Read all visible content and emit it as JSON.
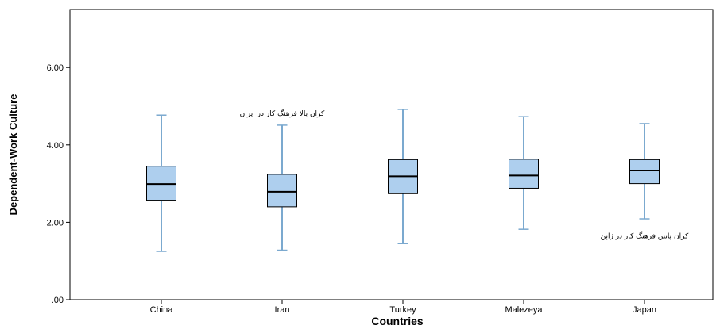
{
  "chart_data": {
    "type": "boxplot",
    "xlabel": "Countries",
    "ylabel": "Dependent-Work Culture",
    "ylim": [
      0,
      7.5
    ],
    "yticks": [
      {
        "value": 0,
        "label": ".00"
      },
      {
        "value": 2,
        "label": "2.00"
      },
      {
        "value": 4,
        "label": "4.00"
      },
      {
        "value": 6,
        "label": "6.00"
      }
    ],
    "grid": false,
    "categories": [
      "China",
      "Iran",
      "Turkey",
      "Malezeya",
      "Japan"
    ],
    "boxes": [
      {
        "category": "China",
        "min": 1.25,
        "q1": 2.57,
        "median": 2.99,
        "q3": 3.45,
        "max": 4.77
      },
      {
        "category": "Iran",
        "min": 1.28,
        "q1": 2.4,
        "median": 2.79,
        "q3": 3.24,
        "max": 4.51
      },
      {
        "category": "Turkey",
        "min": 1.45,
        "q1": 2.74,
        "median": 3.19,
        "q3": 3.62,
        "max": 4.92
      },
      {
        "category": "Malezeya",
        "min": 1.82,
        "q1": 2.88,
        "median": 3.21,
        "q3": 3.63,
        "max": 4.73
      },
      {
        "category": "Japan",
        "min": 2.09,
        "q1": 3.0,
        "median": 3.34,
        "q3": 3.62,
        "max": 4.55
      }
    ],
    "annotations": [
      {
        "text": "کران بالا فرهنگ کار در ایران",
        "category": "Iran",
        "y": 4.82
      },
      {
        "text": "کران پایین فرهنگ کار در ژاپن",
        "category": "Japan",
        "y": 1.65
      }
    ],
    "colors": {
      "box_fill": "#aecfee",
      "box_stroke": "#000000",
      "whisker": "#7ba9cf",
      "median": "#000000"
    }
  }
}
